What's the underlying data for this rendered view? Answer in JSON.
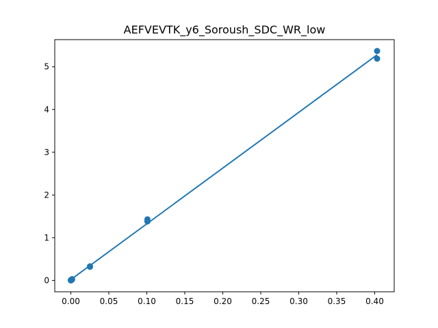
{
  "chart_data": {
    "type": "scatter",
    "title": "AEFVEVTK_y6_Soroush_SDC_WR_low",
    "xlabel": "",
    "ylabel": "",
    "xlim": [
      -0.0212,
      0.4257
    ],
    "ylim": [
      -0.2655,
      5.6355
    ],
    "x_ticks": [
      0.0,
      0.05,
      0.1,
      0.15,
      0.2,
      0.25,
      0.3,
      0.35,
      0.4
    ],
    "x_tick_labels": [
      "0.00",
      "0.05",
      "0.10",
      "0.15",
      "0.20",
      "0.25",
      "0.30",
      "0.35",
      "0.40"
    ],
    "y_ticks": [
      0,
      1,
      2,
      3,
      4,
      5
    ],
    "y_tick_labels": [
      "0",
      "1",
      "2",
      "3",
      "4",
      "5"
    ],
    "grid": false,
    "color": "#1f77b4",
    "series": [
      {
        "kind": "points",
        "x": [
          0.0,
          0.0,
          0.0016,
          0.0016,
          0.0252,
          0.0252,
          0.1008,
          0.1008,
          0.4032,
          0.4032
        ],
        "y": [
          0.0,
          0.01,
          0.02,
          0.03,
          0.32,
          0.33,
          1.38,
          1.43,
          5.19,
          5.37
        ]
      },
      {
        "kind": "fit-line",
        "x": [
          0.0,
          0.4032
        ],
        "y": [
          0.02,
          5.28
        ]
      }
    ]
  }
}
